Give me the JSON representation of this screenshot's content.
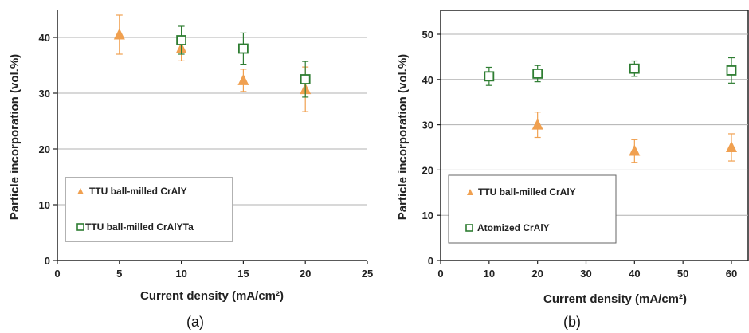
{
  "colors": {
    "orange": "#F0A050",
    "green": "#2E7D32",
    "grid": "#b0b0b0",
    "axis": "#222222"
  },
  "chart_data": [
    {
      "type": "scatter",
      "caption": "(a)",
      "xlabel": "Current density (mA/cm²)",
      "ylabel": "Particle incorporation (vol.%)",
      "xlim": [
        0,
        25
      ],
      "ylim": [
        0,
        40
      ],
      "x_ticks": [
        "0",
        "5",
        "10",
        "15",
        "20",
        "25"
      ],
      "y_ticks": [
        "0",
        "10",
        "20",
        "30",
        "40"
      ],
      "grid": "horizontal",
      "legend_position": "bottom-left",
      "series": [
        {
          "name": "TTU ball-milled CrAlY",
          "marker": "triangle",
          "color": "#F0A050",
          "points": [
            {
              "x": 5,
              "y": 40.5,
              "err": 3.5
            },
            {
              "x": 10,
              "y": 38.0,
              "err": 2.2
            },
            {
              "x": 15,
              "y": 32.3,
              "err": 2.0
            },
            {
              "x": 20,
              "y": 30.7,
              "err": 4.0
            }
          ]
        },
        {
          "name": "TTU ball-milled CrAlYTa",
          "marker": "square",
          "color": "#2E7D32",
          "points": [
            {
              "x": 10,
              "y": 39.5,
              "err": 2.5
            },
            {
              "x": 15,
              "y": 38.0,
              "err": 2.8
            },
            {
              "x": 20,
              "y": 32.5,
              "err": 3.2
            }
          ]
        }
      ]
    },
    {
      "type": "scatter",
      "caption": "(b)",
      "xlabel": "Current density (mA/cm²)",
      "ylabel": "Particle incorporation (vol.%)",
      "xlim": [
        0,
        60
      ],
      "ylim": [
        0,
        50
      ],
      "x_ticks": [
        "0",
        "10",
        "20",
        "30",
        "40",
        "50",
        "60"
      ],
      "y_ticks": [
        "0",
        "10",
        "20",
        "30",
        "40",
        "50"
      ],
      "grid": "horizontal",
      "legend_position": "bottom-left",
      "series": [
        {
          "name": "TTU ball-milled CrAlY",
          "marker": "triangle",
          "color": "#F0A050",
          "points": [
            {
              "x": 20,
              "y": 30.0,
              "err": 2.8
            },
            {
              "x": 40,
              "y": 24.2,
              "err": 2.5
            },
            {
              "x": 60,
              "y": 25.0,
              "err": 3.0
            }
          ]
        },
        {
          "name": "Atomized CrAlY",
          "marker": "square",
          "color": "#2E7D32",
          "points": [
            {
              "x": 10,
              "y": 40.7,
              "err": 2.0
            },
            {
              "x": 20,
              "y": 41.3,
              "err": 1.8
            },
            {
              "x": 40,
              "y": 42.4,
              "err": 1.7
            },
            {
              "x": 60,
              "y": 42.0,
              "err": 2.8
            }
          ]
        }
      ]
    }
  ]
}
